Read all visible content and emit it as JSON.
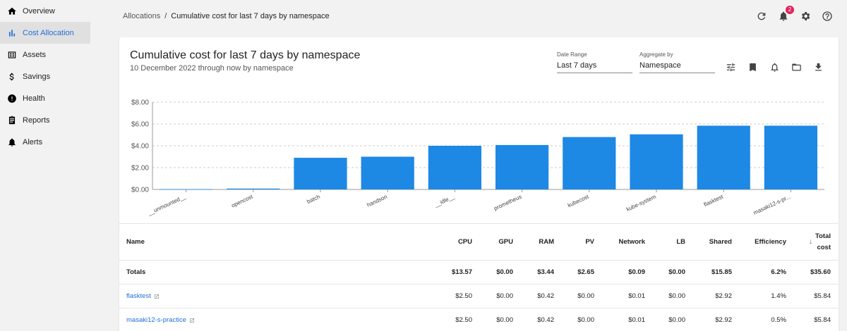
{
  "sidebar": {
    "items": [
      {
        "label": "Overview",
        "icon": "home-icon",
        "active": false
      },
      {
        "label": "Cost Allocation",
        "icon": "bar-chart-icon",
        "active": true
      },
      {
        "label": "Assets",
        "icon": "assets-icon",
        "active": false
      },
      {
        "label": "Savings",
        "icon": "dollar-icon",
        "active": false
      },
      {
        "label": "Health",
        "icon": "alert-circle-icon",
        "active": false
      },
      {
        "label": "Reports",
        "icon": "report-icon",
        "active": false
      },
      {
        "label": "Alerts",
        "icon": "bell-icon",
        "active": false
      }
    ]
  },
  "header": {
    "breadcrumb_root": "Allocations",
    "breadcrumb_sep": "/",
    "breadcrumb_current": "Cumulative cost for last 7 days by namespace",
    "notification_count": "2"
  },
  "card": {
    "title": "Cumulative cost for last 7 days by namespace",
    "subtitle": "10 December 2022 through now by namespace",
    "date_range_label": "Date Range",
    "date_range_value": "Last 7 days",
    "aggregate_label": "Aggregate by",
    "aggregate_value": "Namespace"
  },
  "chart_data": {
    "type": "bar",
    "categories": [
      "__unmounted__",
      "opencost",
      "batch",
      "handson",
      "__idle__",
      "prometheus",
      "kubecost",
      "kube-system",
      "flasktest",
      "masaki12-s-pr..."
    ],
    "values": [
      0.02,
      0.08,
      2.9,
      3.0,
      4.0,
      4.07,
      4.8,
      5.05,
      5.84,
      5.84
    ],
    "ylim": [
      0,
      8
    ],
    "yticks": [
      0,
      2,
      4,
      6,
      8
    ],
    "ytick_labels": [
      "$0.00",
      "$2.00",
      "$4.00",
      "$6.00",
      "$8.00"
    ],
    "bar_color": "#1e88e5",
    "grid": true
  },
  "table": {
    "headers": {
      "name": "Name",
      "cpu": "CPU",
      "gpu": "GPU",
      "ram": "RAM",
      "pv": "PV",
      "network": "Network",
      "lb": "LB",
      "shared": "Shared",
      "efficiency": "Efficiency",
      "total_line1": "Total",
      "total_line2": "cost"
    },
    "totals": {
      "name": "Totals",
      "cpu": "$13.57",
      "gpu": "$0.00",
      "ram": "$3.44",
      "pv": "$2.65",
      "network": "$0.09",
      "lb": "$0.00",
      "shared": "$15.85",
      "efficiency": "6.2%",
      "total": "$35.60"
    },
    "rows": [
      {
        "name": "flasktest",
        "cpu": "$2.50",
        "gpu": "$0.00",
        "ram": "$0.42",
        "pv": "$0.00",
        "network": "$0.01",
        "lb": "$0.00",
        "shared": "$2.92",
        "efficiency": "1.4%",
        "total": "$5.84"
      },
      {
        "name": "masaki12-s-practice",
        "cpu": "$2.50",
        "gpu": "$0.00",
        "ram": "$0.42",
        "pv": "$0.00",
        "network": "$0.01",
        "lb": "$0.00",
        "shared": "$2.92",
        "efficiency": "0.5%",
        "total": "$5.84"
      }
    ]
  }
}
